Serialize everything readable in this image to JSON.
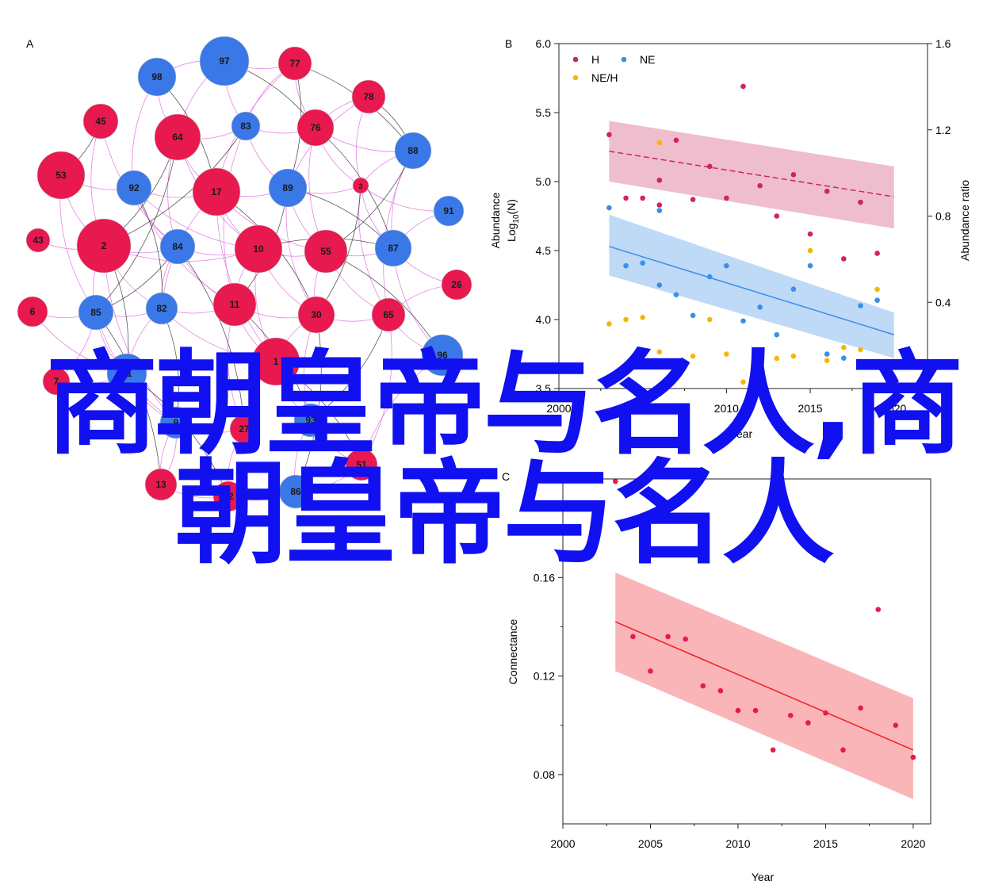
{
  "panel_labels": {
    "a": "A",
    "b": "B",
    "c": "C"
  },
  "overlay": {
    "line1": "商朝皇帝与名人,商",
    "line2": "朝皇帝与名人"
  },
  "colors": {
    "red_node": "#e8194f",
    "blue_node": "#3a78e8",
    "node_stroke": "#d0d0d0",
    "edge_pink": "#e070e0",
    "edge_dark": "#3a3a3a",
    "H": "#d0245a",
    "NE": "#3a8fe8",
    "NEH": "#f5b800",
    "C_series": "#e8194f",
    "C_line": "#f02020"
  },
  "chart_data": [
    {
      "type": "network",
      "panel": "A",
      "nodes": [
        {
          "id": "97",
          "group": "blue"
        },
        {
          "id": "77",
          "group": "red"
        },
        {
          "id": "98",
          "group": "blue"
        },
        {
          "id": "78",
          "group": "red"
        },
        {
          "id": "45",
          "group": "red"
        },
        {
          "id": "64",
          "group": "red"
        },
        {
          "id": "83",
          "group": "blue"
        },
        {
          "id": "76",
          "group": "red"
        },
        {
          "id": "88",
          "group": "blue"
        },
        {
          "id": "53",
          "group": "red"
        },
        {
          "id": "92",
          "group": "blue"
        },
        {
          "id": "17",
          "group": "red"
        },
        {
          "id": "89",
          "group": "blue"
        },
        {
          "id": "3",
          "group": "red"
        },
        {
          "id": "91",
          "group": "blue"
        },
        {
          "id": "43",
          "group": "red"
        },
        {
          "id": "2",
          "group": "red"
        },
        {
          "id": "84",
          "group": "blue"
        },
        {
          "id": "10",
          "group": "red"
        },
        {
          "id": "55",
          "group": "red"
        },
        {
          "id": "87",
          "group": "blue"
        },
        {
          "id": "26",
          "group": "red"
        },
        {
          "id": "6",
          "group": "red"
        },
        {
          "id": "85",
          "group": "blue"
        },
        {
          "id": "82",
          "group": "blue"
        },
        {
          "id": "11",
          "group": "red"
        },
        {
          "id": "30",
          "group": "red"
        },
        {
          "id": "65",
          "group": "red"
        },
        {
          "id": "96",
          "group": "blue"
        },
        {
          "id": "7",
          "group": "red"
        },
        {
          "id": "81",
          "group": "blue"
        },
        {
          "id": "1",
          "group": "red"
        },
        {
          "id": "9",
          "group": "blue"
        },
        {
          "id": "27",
          "group": "red"
        },
        {
          "id": "93",
          "group": "blue"
        },
        {
          "id": "51",
          "group": "red"
        },
        {
          "id": "13",
          "group": "red"
        },
        {
          "id": "32",
          "group": "red"
        },
        {
          "id": "86",
          "group": "blue"
        }
      ]
    },
    {
      "type": "scatter",
      "panel": "B",
      "xlabel": "Year",
      "ylabel": "Abundance Log10(N)",
      "ylabel_parts": {
        "main": "Abundance",
        "log": "Log",
        "sub": "10",
        "rest": "(N)"
      },
      "y2label": "Abundance ratio",
      "xlim": [
        2000,
        2022
      ],
      "ylim": [
        3.5,
        6.0
      ],
      "y2lim": [
        0.0,
        1.6
      ],
      "xticks": [
        "2000",
        "2005",
        "2010",
        "2015",
        "2020"
      ],
      "yticks": [
        "3.5",
        "4.0",
        "4.5",
        "5.0",
        "5.5",
        "6.0"
      ],
      "y2ticks": [
        "0.0",
        "0.4",
        "0.8",
        "1.2",
        "1.6"
      ],
      "legend": {
        "placement": "top-left",
        "items": [
          "H",
          "NE",
          "NE/H"
        ]
      },
      "series": [
        {
          "name": "H",
          "axis": "left",
          "points": [
            [
              2003,
              5.34
            ],
            [
              2004,
              4.88
            ],
            [
              2005,
              4.88
            ],
            [
              2006,
              4.83
            ],
            [
              2006,
              5.01
            ],
            [
              2007,
              5.3
            ],
            [
              2008,
              4.87
            ],
            [
              2009,
              5.11
            ],
            [
              2010,
              4.88
            ],
            [
              2011,
              5.69
            ],
            [
              2012,
              4.97
            ],
            [
              2013,
              4.75
            ],
            [
              2014,
              5.05
            ],
            [
              2015,
              4.62
            ],
            [
              2016,
              4.93
            ],
            [
              2017,
              4.44
            ],
            [
              2018,
              4.85
            ],
            [
              2019,
              4.48
            ]
          ],
          "fit": {
            "start": [
              2003,
              5.22
            ],
            "end": [
              2020,
              4.89
            ],
            "band_upper": [
              [
                2003,
                5.44
              ],
              [
                2020,
                5.11
              ]
            ],
            "band_lower": [
              [
                2003,
                5.0
              ],
              [
                2020,
                4.66
              ]
            ]
          }
        },
        {
          "name": "NE",
          "axis": "left",
          "points": [
            [
              2003,
              4.81
            ],
            [
              2004,
              4.39
            ],
            [
              2005,
              4.41
            ],
            [
              2006,
              4.79
            ],
            [
              2006,
              4.25
            ],
            [
              2007,
              4.18
            ],
            [
              2008,
              4.03
            ],
            [
              2009,
              4.31
            ],
            [
              2010,
              4.39
            ],
            [
              2011,
              3.99
            ],
            [
              2012,
              4.09
            ],
            [
              2013,
              3.89
            ],
            [
              2014,
              4.22
            ],
            [
              2015,
              4.39
            ],
            [
              2016,
              3.75
            ],
            [
              2017,
              3.72
            ],
            [
              2018,
              4.1
            ],
            [
              2019,
              4.14
            ]
          ],
          "fit": {
            "start": [
              2003,
              4.53
            ],
            "end": [
              2020,
              3.89
            ],
            "band_upper": [
              [
                2003,
                4.76
              ],
              [
                2020,
                4.05
              ]
            ],
            "band_lower": [
              [
                2003,
                4.32
              ],
              [
                2020,
                3.72
              ]
            ]
          }
        },
        {
          "name": "NE/H",
          "axis": "right",
          "points": [
            [
              2003,
              0.3
            ],
            [
              2004,
              0.32
            ],
            [
              2005,
              0.33
            ],
            [
              2006,
              1.14
            ],
            [
              2006,
              0.17
            ],
            [
              2007,
              0.07
            ],
            [
              2008,
              0.15
            ],
            [
              2009,
              0.32
            ],
            [
              2010,
              0.16
            ],
            [
              2011,
              0.03
            ],
            [
              2012,
              0.13
            ],
            [
              2013,
              0.14
            ],
            [
              2014,
              0.15
            ],
            [
              2015,
              0.64
            ],
            [
              2016,
              0.13
            ],
            [
              2017,
              0.19
            ],
            [
              2018,
              0.18
            ],
            [
              2019,
              0.46
            ]
          ]
        }
      ]
    },
    {
      "type": "scatter",
      "panel": "C",
      "xlabel": "Year",
      "ylabel": "Connectance",
      "xlim": [
        2000,
        2021
      ],
      "ylim": [
        0.06,
        0.2
      ],
      "xticks": [
        "2000",
        "2005",
        "2010",
        "2015",
        "2020"
      ],
      "yticks": [
        "0.08",
        "0.12",
        "0.16",
        "0.20"
      ],
      "series": [
        {
          "name": "",
          "points": [
            [
              2003,
              0.199
            ],
            [
              2004,
              0.136
            ],
            [
              2005,
              0.122
            ],
            [
              2006,
              0.136
            ],
            [
              2007,
              0.135
            ],
            [
              2008,
              0.116
            ],
            [
              2009,
              0.114
            ],
            [
              2010,
              0.106
            ],
            [
              2011,
              0.106
            ],
            [
              2012,
              0.09
            ],
            [
              2013,
              0.104
            ],
            [
              2014,
              0.101
            ],
            [
              2015,
              0.105
            ],
            [
              2016,
              0.09
            ],
            [
              2017,
              0.107
            ],
            [
              2018,
              0.147
            ],
            [
              2019,
              0.1
            ],
            [
              2020,
              0.087
            ]
          ],
          "fit": {
            "start": [
              2003,
              0.142
            ],
            "end": [
              2020,
              0.09
            ],
            "band_upper": [
              [
                2003,
                0.162
              ],
              [
                2020,
                0.111
              ]
            ],
            "band_lower": [
              [
                2003,
                0.122
              ],
              [
                2020,
                0.07
              ]
            ]
          }
        }
      ]
    }
  ]
}
